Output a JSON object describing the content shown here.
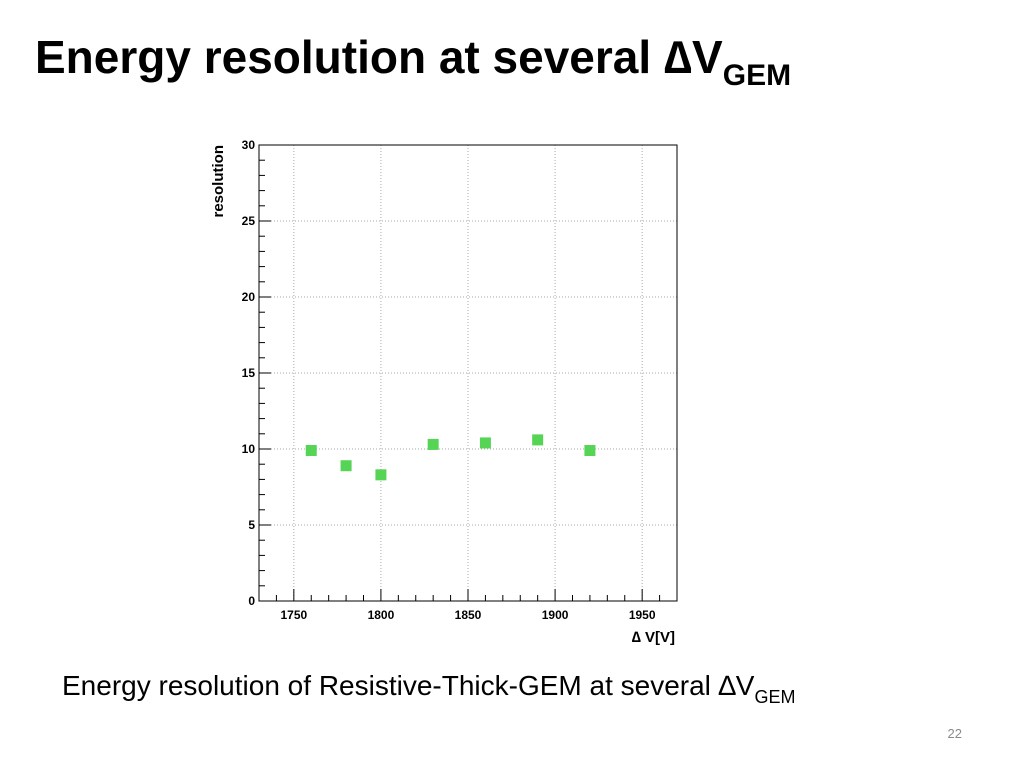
{
  "slide": {
    "title": "Energy resolution at several ∆V",
    "title_sub": "GEM",
    "caption": "Energy resolution of Resistive-Thick-GEM at several ∆V",
    "caption_sub": "GEM",
    "page_number": "22"
  },
  "chart_data": {
    "type": "scatter",
    "title": "",
    "xlabel": "∆ V[V]",
    "ylabel": "resolution",
    "xlim": [
      1730,
      1970
    ],
    "ylim": [
      0,
      30
    ],
    "x_ticks": [
      1750,
      1800,
      1850,
      1900,
      1950
    ],
    "y_ticks": [
      0,
      5,
      10,
      15,
      20,
      25,
      30
    ],
    "grid": true,
    "marker": "square",
    "marker_color": "#55d455",
    "series": [
      {
        "x": [
          1760,
          1780,
          1800,
          1830,
          1860,
          1890,
          1920
        ],
        "y": [
          9.9,
          8.9,
          8.3,
          10.3,
          10.4,
          10.6,
          9.9
        ]
      }
    ]
  }
}
